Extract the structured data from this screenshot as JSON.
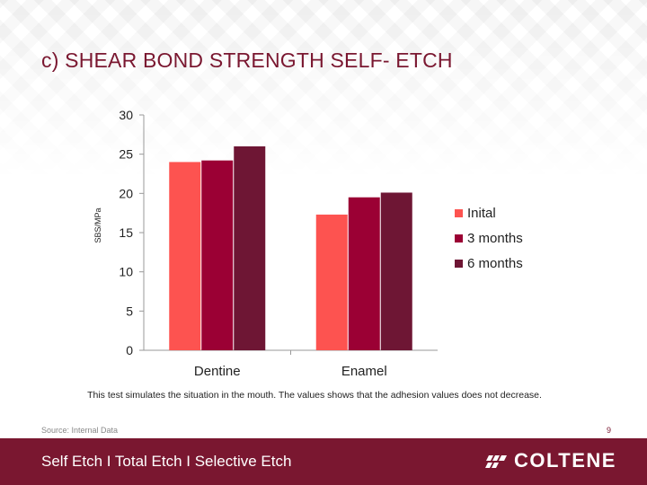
{
  "title": "c) SHEAR BOND STRENGTH SELF- ETCH",
  "note": "This test simulates the situation in the mouth. The values  shows that the adhesion values does not decrease.",
  "source": "Source: Internal Data",
  "page_number": "9",
  "footer": {
    "text": "Self Etch  I  Total Etch  I  Selective Etch",
    "logo_text": "COLTENE"
  },
  "colors": {
    "brand": "#7a1730",
    "series": [
      "#fd5350",
      "#9b0034",
      "#6e1634"
    ]
  },
  "chart_data": {
    "type": "bar",
    "categories": [
      "Dentine",
      "Enamel"
    ],
    "series": [
      {
        "name": "Inital",
        "values": [
          24.0,
          17.3
        ]
      },
      {
        "name": "3 months",
        "values": [
          24.2,
          19.5
        ]
      },
      {
        "name": "6 months",
        "values": [
          26.0,
          20.1
        ]
      }
    ],
    "ylabel": "SBS/MPa",
    "ylim": [
      0,
      30
    ],
    "yticks": [
      "0",
      "5",
      "10",
      "15",
      "20",
      "25",
      "30"
    ],
    "grid": false,
    "legend": "right"
  }
}
